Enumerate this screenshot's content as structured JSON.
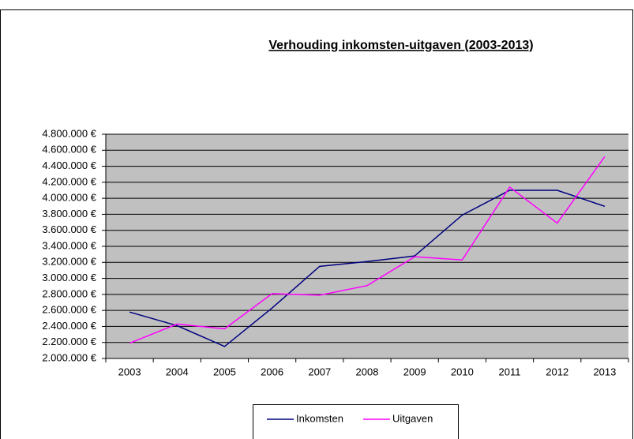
{
  "chart_data": {
    "type": "line",
    "title": "Verhouding inkomsten-uitgaven (2003-2013)",
    "categories": [
      "2003",
      "2004",
      "2005",
      "2006",
      "2007",
      "2008",
      "2009",
      "2010",
      "2011",
      "2012",
      "2013"
    ],
    "series": [
      {
        "name": "Inkomsten",
        "color": "#000080",
        "values": [
          2580000,
          2410000,
          2150000,
          2630000,
          3150000,
          3210000,
          3280000,
          3790000,
          4100000,
          4100000,
          3900000
        ]
      },
      {
        "name": "Uitgaven",
        "color": "#ff00ff",
        "values": [
          2190000,
          2430000,
          2370000,
          2810000,
          2790000,
          2910000,
          3270000,
          3230000,
          4140000,
          3690000,
          4520000
        ]
      }
    ],
    "ylim": [
      2000000,
      4800000
    ],
    "yticks": [
      {
        "value": 2000000,
        "label": "2.000.000 €"
      },
      {
        "value": 2200000,
        "label": "2.200.000 €"
      },
      {
        "value": 2400000,
        "label": "2.400.000 €"
      },
      {
        "value": 2600000,
        "label": "2.600.000 €"
      },
      {
        "value": 2800000,
        "label": "2.800.000 €"
      },
      {
        "value": 3000000,
        "label": "3.000.000 €"
      },
      {
        "value": 3200000,
        "label": "3.200.000 €"
      },
      {
        "value": 3400000,
        "label": "3.400.000 €"
      },
      {
        "value": 3600000,
        "label": "3.600.000 €"
      },
      {
        "value": 3800000,
        "label": "3.800.000 €"
      },
      {
        "value": 4000000,
        "label": "4.000.000 €"
      },
      {
        "value": 4200000,
        "label": "4.200.000 €"
      },
      {
        "value": 4400000,
        "label": "4.400.000 €"
      },
      {
        "value": 4600000,
        "label": "4.600.000 €"
      },
      {
        "value": 4800000,
        "label": "4.800.000 €"
      }
    ],
    "grid": true,
    "legend": "bottom",
    "plot_background": "#c0c0c0"
  }
}
